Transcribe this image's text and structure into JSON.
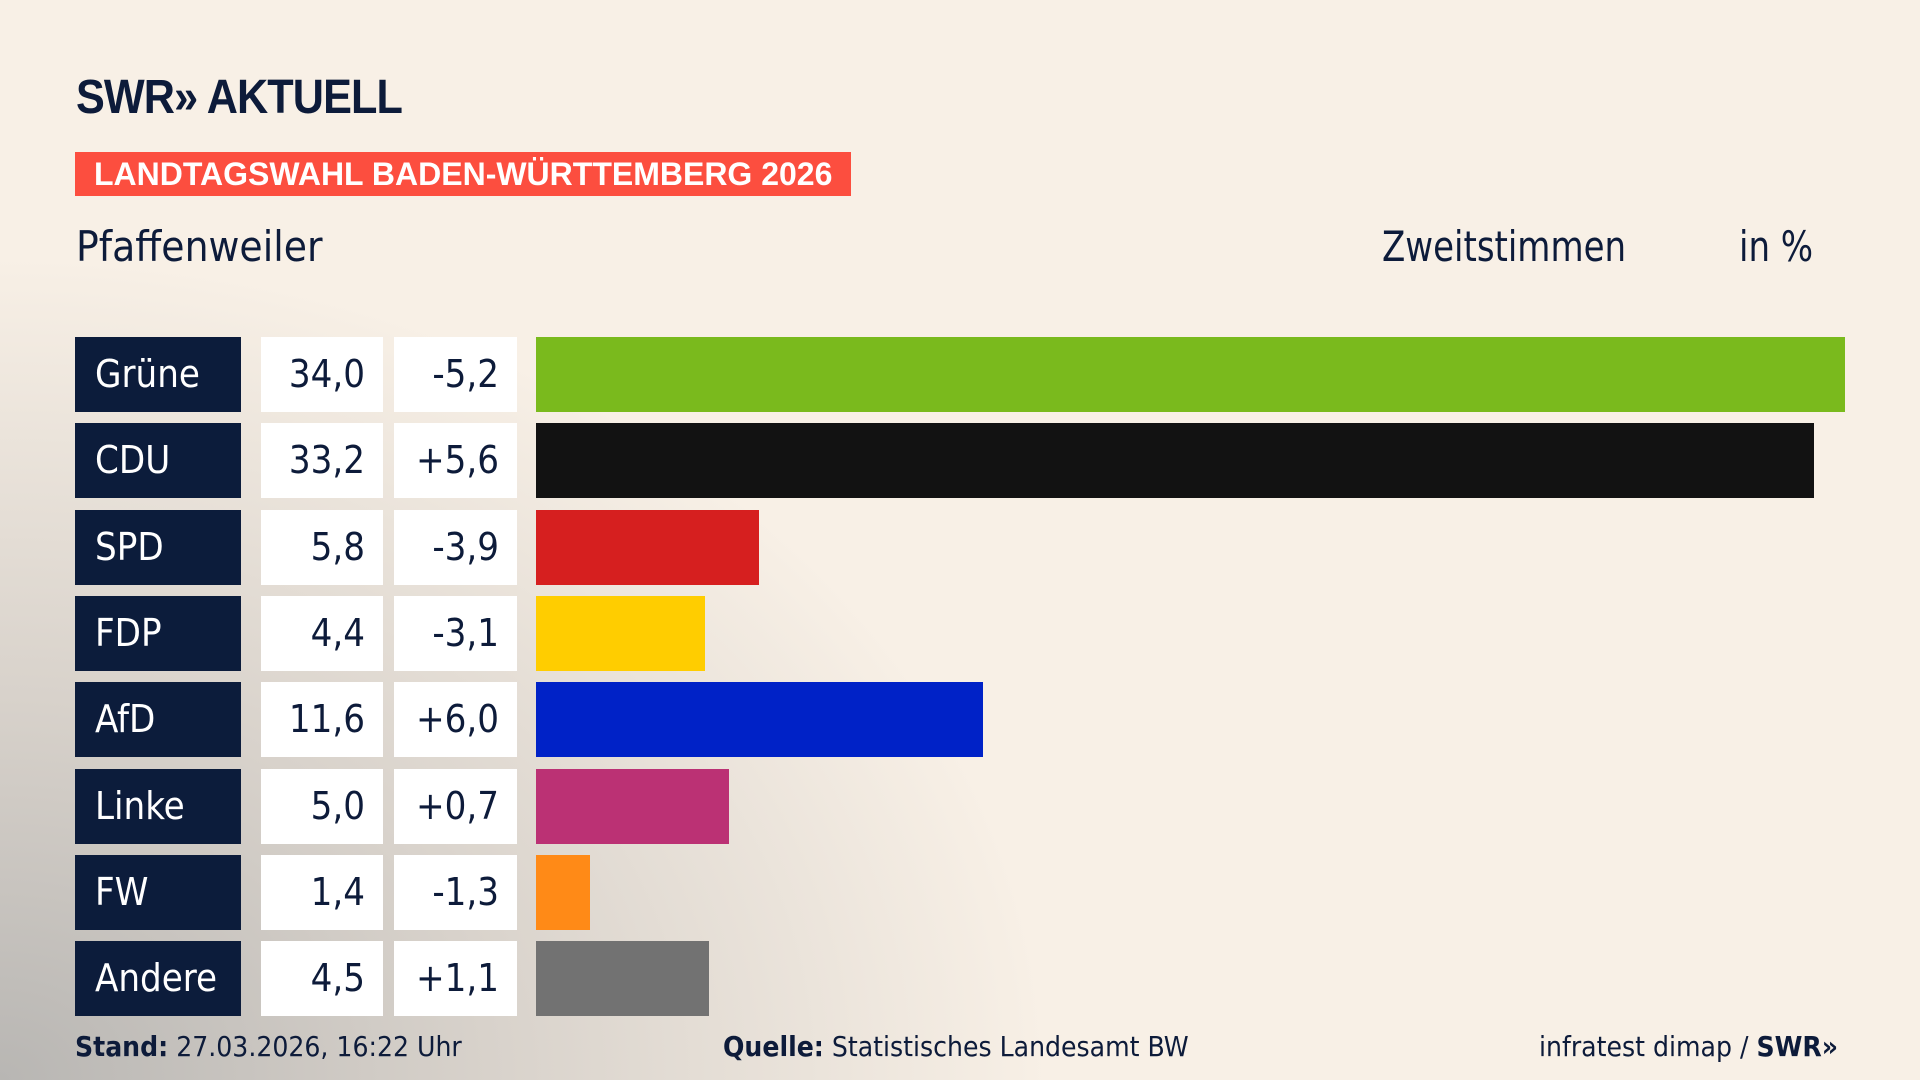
{
  "header": {
    "logo": "SWR» AKTUELL",
    "banner": "LANDTAGSWAHL BADEN-WÜRTTEMBERG 2026",
    "place": "Pfaffenweiler",
    "metric": "Zweitstimmen",
    "unit": "in %"
  },
  "chart_data": {
    "type": "bar",
    "orientation": "horizontal",
    "categories": [
      "Grüne",
      "CDU",
      "SPD",
      "FDP",
      "AfD",
      "Linke",
      "FW",
      "Andere"
    ],
    "values": [
      34.0,
      33.2,
      5.8,
      4.4,
      11.6,
      5.0,
      1.4,
      4.5
    ],
    "value_labels": [
      "34,0",
      "33,2",
      "5,8",
      "4,4",
      "11,6",
      "5,0",
      "1,4",
      "4,5"
    ],
    "diff_labels": [
      "-5,2",
      "+5,6",
      "-3,9",
      "-3,1",
      "+6,0",
      "+0,7",
      "-1,3",
      "+1,1"
    ],
    "colors": [
      "#7aba1d",
      "#121212",
      "#d61f1f",
      "#ffcd00",
      "#0022c7",
      "#bb3174",
      "#ff8a17",
      "#727272"
    ],
    "xlim": [
      0,
      34.0
    ],
    "grid": false
  },
  "footer": {
    "stand_label": "Stand:",
    "stand_value": "27.03.2026, 16:22 Uhr",
    "source_label": "Quelle:",
    "source_value": "Statistisches Landesamt BW",
    "credit": "infratest dimap / ",
    "credit_logo": "SWR»"
  }
}
